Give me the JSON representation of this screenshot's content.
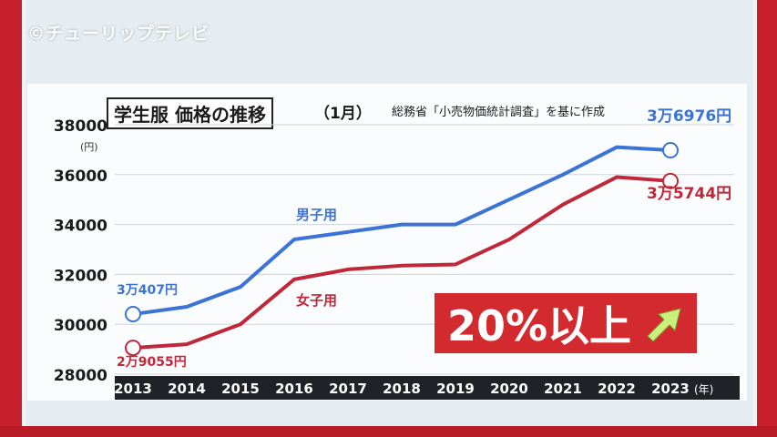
{
  "watermark": "©チューリップテレビ",
  "title": "学生服 価格の推移",
  "subtitle": "（1月）",
  "source": "総務省「小売物価統計調査」を基に作成",
  "callout": "20%以上",
  "chart_data": {
    "type": "line",
    "x": [
      "2013",
      "2014",
      "2015",
      "2016",
      "2017",
      "2018",
      "2019",
      "2020",
      "2021",
      "2022",
      "2023"
    ],
    "x_suffix": "(年)",
    "y_unit": "(円)",
    "ylim": [
      28000,
      38000
    ],
    "yticks": [
      "38000",
      "36000",
      "34000",
      "32000",
      "30000",
      "28000"
    ],
    "grid": true,
    "series": [
      {
        "name": "男子用",
        "color": "#3b73d6",
        "values": [
          30407,
          30700,
          31500,
          33400,
          33700,
          34000,
          34000,
          35000,
          36000,
          37100,
          36976
        ]
      },
      {
        "name": "女子用",
        "color": "#c0283a",
        "values": [
          29055,
          29200,
          30000,
          31800,
          32200,
          32350,
          32400,
          33400,
          34800,
          35900,
          35744
        ]
      }
    ],
    "annotations": [
      {
        "text": "3万407円",
        "color": "#3b73d6"
      },
      {
        "text": "2万9055円",
        "color": "#c0283a"
      },
      {
        "text": "3万6976円",
        "color": "#3b73d6"
      },
      {
        "text": "3万5744円",
        "color": "#c0283a"
      }
    ]
  }
}
